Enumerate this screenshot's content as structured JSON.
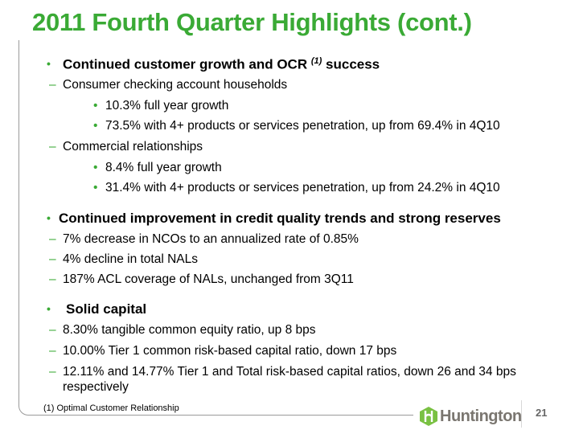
{
  "title": "2011 Fourth Quarter Highlights (cont.)",
  "sections": [
    {
      "heading_pre": "Continued customer growth and OCR ",
      "heading_sup": "(1)",
      "heading_post": " success",
      "items": [
        {
          "text": "Consumer checking account households",
          "sub": [
            "10.3% full year growth",
            "73.5% with 4+ products or services penetration, up from 69.4% in 4Q10"
          ]
        },
        {
          "text": "Commercial relationships",
          "sub": [
            "8.4% full year growth",
            "31.4% with 4+ products or services penetration, up from 24.2% in 4Q10"
          ]
        }
      ]
    },
    {
      "heading": "Continued improvement in credit quality trends and strong reserves",
      "items": [
        "7% decrease in NCOs to an annualized rate of 0.85%",
        "4% decline in total NALs",
        "187% ACL coverage of NALs, unchanged from 3Q11"
      ]
    },
    {
      "heading": "Solid capital",
      "items": [
        "8.30% tangible common equity ratio, up 8 bps",
        "10.00% Tier 1 common risk-based capital ratio, down 17 bps",
        "12.11% and 14.77% Tier 1 and Total risk-based capital ratios, down 26 and 34 bps",
        "respectively"
      ]
    }
  ],
  "footnote": "(1)  Optimal Customer Relationship",
  "logo_text": "Huntington",
  "page_number": "21",
  "bullet": "•",
  "dash": "–"
}
